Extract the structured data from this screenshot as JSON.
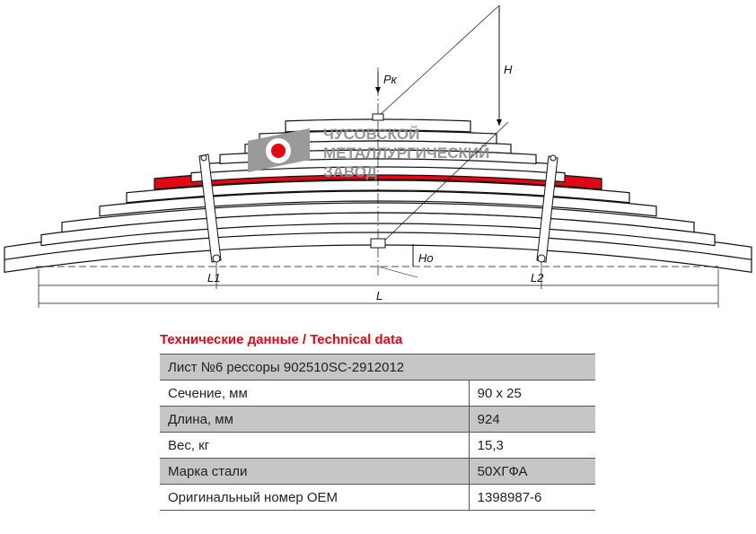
{
  "drawing": {
    "labels": {
      "load": "Pк",
      "height": "H",
      "height0": "Ho",
      "l1": "L1",
      "l2": "L2",
      "length": "L"
    },
    "highlighted_leaf_color": "#e30613",
    "logo": {
      "lines": [
        "ЧУСОВСКОЙ",
        "МЕТАЛЛУРГИЧЕСКИЙ",
        "ЗАВОД"
      ],
      "color": "#8c8c8c",
      "accent": "#e30613"
    }
  },
  "table": {
    "title": "Технические данные / Technical data",
    "header": "Лист №6 рессоры 902510SC-2912012",
    "rows": [
      {
        "label": "Сечение, мм",
        "value": "90 x 25"
      },
      {
        "label": "Длина, мм",
        "value": "924"
      },
      {
        "label": "Вес, кг",
        "value": "15,3"
      },
      {
        "label": "Марка стали",
        "value": "50ХГФА"
      },
      {
        "label": "Оригинальный номер OEM",
        "value": "1398987-6"
      }
    ]
  }
}
